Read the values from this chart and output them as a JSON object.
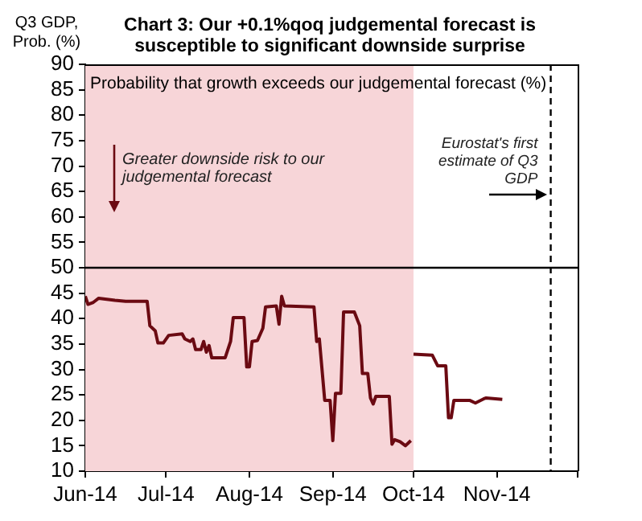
{
  "chart_data": {
    "type": "line",
    "title": "Chart 3: Our +0.1%qoq judgemental forecast is susceptible to significant downside surprise",
    "ylabel": "Q3 GDP, Prob. (%)",
    "annotations": [
      "Probability that growth exceeds our judgemental forecast (%)",
      "Greater downside risk to our judgemental forecast"
    ],
    "xlim": [
      "2014-06-01",
      "2014-12-01"
    ],
    "xticks": [
      {
        "value": "2014-06-01",
        "label": "Jun-14"
      },
      {
        "value": "2014-07-01",
        "label": "Jul-14"
      },
      {
        "value": "2014-08-01",
        "label": "Aug-14"
      },
      {
        "value": "2014-09-01",
        "label": "Sep-14"
      },
      {
        "value": "2014-10-01",
        "label": "Oct-14"
      },
      {
        "value": "2014-11-01",
        "label": "Nov-14"
      },
      {
        "value": "2014-12-01",
        "label": null
      }
    ],
    "ylim": [
      10,
      90
    ],
    "yticks": [
      10,
      15,
      20,
      25,
      30,
      35,
      40,
      45,
      50,
      55,
      60,
      65,
      70,
      75,
      80,
      85,
      90
    ],
    "grid": false,
    "marker": "none",
    "line_style": "solid",
    "bands": [
      {
        "axis": "x",
        "from": "2014-06-01",
        "to": "2014-10-01",
        "color": "#f7d5d8"
      }
    ],
    "ref_lines": [
      {
        "axis": "y",
        "value": 50,
        "color": "#000000",
        "line_style": "solid"
      },
      {
        "axis": "x",
        "value": "2014-11-21",
        "label": "Eurostat's first estimate of Q3 GDP",
        "color": "#000000",
        "line_style": "dashed"
      }
    ],
    "series": [
      {
        "color": "#6b0a12",
        "x": [
          "2014-06-01",
          "2014-06-02",
          "2014-06-04",
          "2014-06-06",
          "2014-06-12",
          "2014-06-16",
          "2014-06-24",
          "2014-06-25",
          "2014-06-27",
          "2014-06-28",
          "2014-06-30",
          "2014-07-02",
          "2014-07-07",
          "2014-07-08",
          "2014-07-10",
          "2014-07-11",
          "2014-07-12",
          "2014-07-14",
          "2014-07-15",
          "2014-07-16",
          "2014-07-17",
          "2014-07-18",
          "2014-07-23",
          "2014-07-25",
          "2014-07-26",
          "2014-07-30",
          "2014-07-31",
          "2014-08-01",
          "2014-08-02",
          "2014-08-04",
          "2014-08-06",
          "2014-08-07",
          "2014-08-11",
          "2014-08-12",
          "2014-08-13",
          "2014-08-14",
          "2014-08-25",
          "2014-08-26",
          "2014-08-27",
          "2014-08-29",
          "2014-08-31",
          "2014-09-01",
          "2014-09-02",
          "2014-09-04",
          "2014-09-05",
          "2014-09-09",
          "2014-09-11",
          "2014-09-12",
          "2014-09-14",
          "2014-09-15",
          "2014-09-16",
          "2014-09-17",
          "2014-09-22",
          "2014-09-23",
          "2014-09-24",
          "2014-09-26",
          "2014-09-28",
          "2014-09-30",
          "2014-09-30T12:00",
          "2014-10-01",
          "2014-10-08",
          "2014-10-10",
          "2014-10-13",
          "2014-10-14",
          "2014-10-15",
          "2014-10-16",
          "2014-10-22",
          "2014-10-24",
          "2014-10-27",
          "2014-10-28",
          "2014-11-03"
        ],
        "values": [
          44.4,
          42.8,
          43.2,
          44,
          43.6,
          43.4,
          43.4,
          38.6,
          37.6,
          35.2,
          35.2,
          36.7,
          37,
          36,
          35.5,
          36,
          33.9,
          33.9,
          35.5,
          33.4,
          34.7,
          32.3,
          32.3,
          35.5,
          40.2,
          40.2,
          30.5,
          30.5,
          35.5,
          35.7,
          38.1,
          42.3,
          42.5,
          38.9,
          44.4,
          42.5,
          42.3,
          35.5,
          36,
          23.9,
          23.9,
          16,
          25.3,
          25.3,
          41.3,
          41.3,
          38.6,
          29.2,
          29.2,
          24.4,
          23.2,
          24.7,
          24.7,
          15.3,
          16.2,
          15.8,
          15,
          16,
          null,
          33,
          32.8,
          30.7,
          30.7,
          20.5,
          20.5,
          23.9,
          23.9,
          23.4,
          24.2,
          24.4,
          24.1
        ]
      }
    ]
  }
}
